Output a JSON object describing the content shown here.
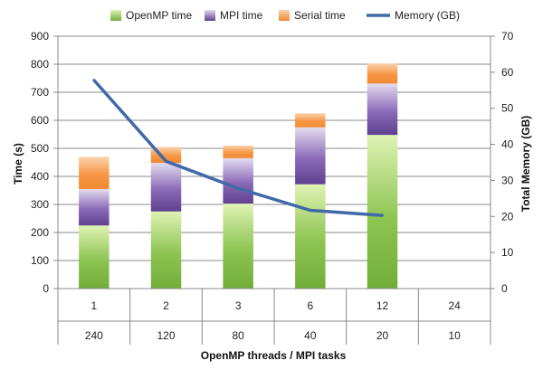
{
  "chart_data": {
    "type": "bar",
    "stacked": true,
    "categories": [
      "1",
      "2",
      "3",
      "6",
      "12",
      "24"
    ],
    "secondary_categories": [
      "240",
      "120",
      "80",
      "40",
      "20",
      "10"
    ],
    "xlabel": "OpenMP threads / MPI tasks",
    "ylabel": "Time (s)",
    "y2label": "Total Memory (GB)",
    "ylim": [
      0,
      900
    ],
    "y2lim": [
      0,
      70
    ],
    "yticks": [
      0,
      100,
      200,
      300,
      400,
      500,
      600,
      700,
      800,
      900
    ],
    "y2ticks": [
      0,
      10,
      20,
      30,
      40,
      50,
      60,
      70
    ],
    "grid": true,
    "legend_position": "top",
    "series": [
      {
        "name": "OpenMP time",
        "type": "bar",
        "values": [
          225,
          275,
          303,
          372,
          548,
          null
        ],
        "color": "#8fc652"
      },
      {
        "name": "MPI time",
        "type": "bar",
        "values": [
          130,
          173,
          162,
          203,
          183,
          null
        ],
        "color": "#7b5ea6"
      },
      {
        "name": "Serial time",
        "type": "bar",
        "values": [
          115,
          57,
          45,
          50,
          72,
          null
        ],
        "color": "#f79646"
      },
      {
        "name": "Memory (GB)",
        "type": "line",
        "axis": "secondary",
        "values": [
          57.8,
          35.3,
          27.8,
          21.7,
          20.3,
          null
        ],
        "color": "#4169a8"
      }
    ]
  }
}
